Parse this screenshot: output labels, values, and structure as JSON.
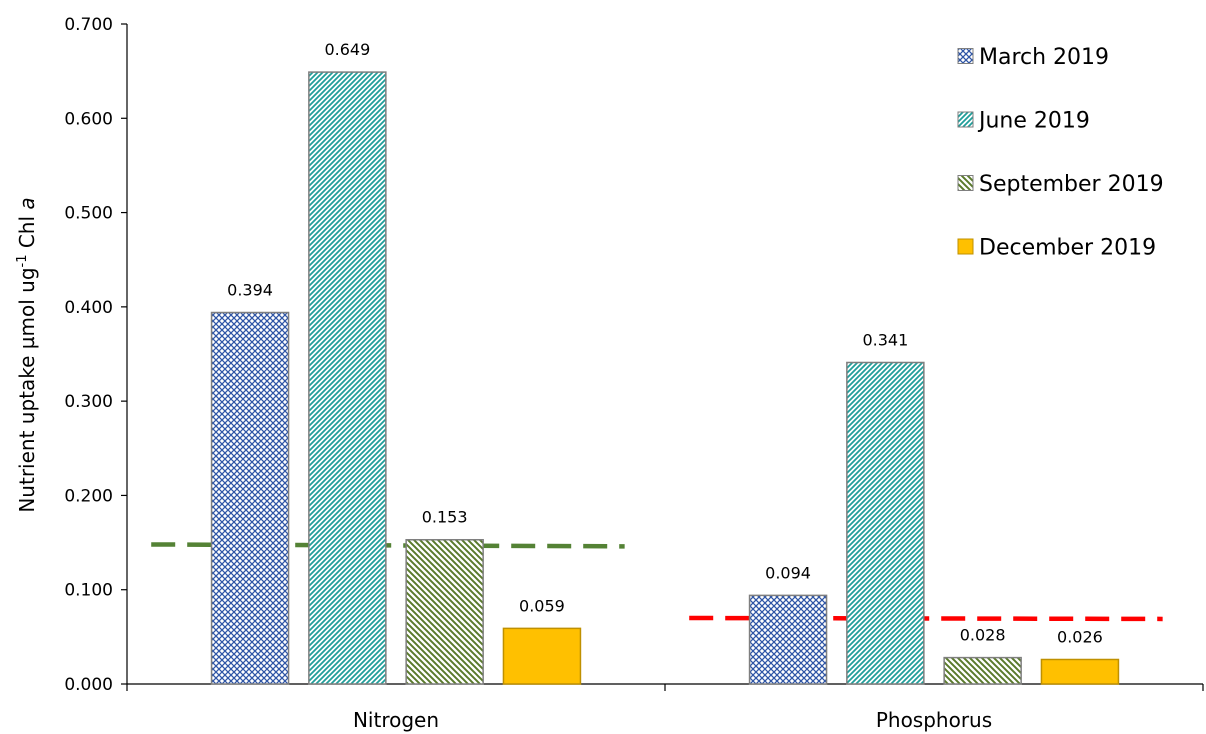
{
  "chart_data": {
    "type": "bar",
    "ylabel": {
      "main": "Nutrient uptake µmol ug",
      "sup": "-1",
      "chl": " Chl ",
      "italic": "a"
    },
    "categories": [
      "Nitrogen",
      "Phosphorus"
    ],
    "ylim": [
      0,
      0.7
    ],
    "ytick_labels": [
      "0.000",
      "0.100",
      "0.200",
      "0.300",
      "0.400",
      "0.500",
      "0.600",
      "0.700"
    ],
    "ytick_values": [
      0,
      0.1,
      0.2,
      0.3,
      0.4,
      0.5,
      0.6,
      0.7
    ],
    "grid": false,
    "legend_position": "top-right",
    "series": [
      {
        "name": "March 2019",
        "values": [
          0.394,
          0.094
        ],
        "labels": [
          "0.394",
          "0.094"
        ],
        "color": "#2e55a6",
        "pattern": "crosshatch"
      },
      {
        "name": "June 2019",
        "values": [
          0.649,
          0.341
        ],
        "labels": [
          "0.649",
          "0.341"
        ],
        "color": "#1f9e9a",
        "pattern": "diagonal-up"
      },
      {
        "name": "September 2019",
        "values": [
          0.153,
          0.028
        ],
        "labels": [
          "0.153",
          "0.028"
        ],
        "color": "#5a7a2c",
        "pattern": "diagonal-down"
      },
      {
        "name": "December 2019",
        "values": [
          0.059,
          0.026
        ],
        "labels": [
          "0.059",
          "0.026"
        ],
        "color": "#ffc000",
        "pattern": "solid"
      }
    ],
    "reference_lines": [
      {
        "category_index": 0,
        "value_start": 0.148,
        "value_end": 0.146,
        "color": "#548235",
        "style": "dashed"
      },
      {
        "category_index": 1,
        "value_start": 0.07,
        "value_end": 0.069,
        "color": "#ff0000",
        "style": "dashed"
      }
    ]
  }
}
